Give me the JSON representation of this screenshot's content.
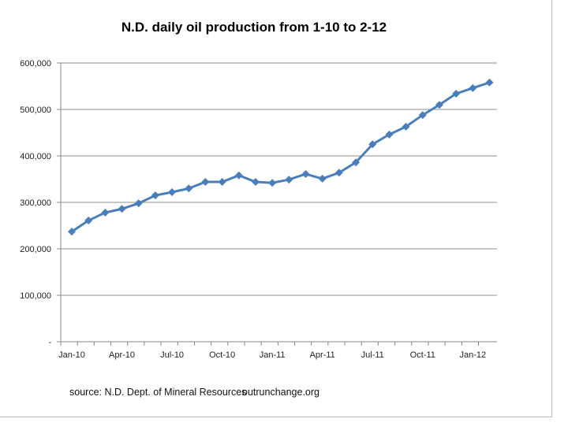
{
  "chart_data": {
    "type": "line",
    "title": "N.D. daily oil production from 1-10 to 2-12",
    "xlabel": "",
    "ylabel": "",
    "ylim": [
      0,
      600000
    ],
    "grid": true,
    "legend": "none",
    "x": [
      "Jan-10",
      "Feb-10",
      "Mar-10",
      "Apr-10",
      "May-10",
      "Jun-10",
      "Jul-10",
      "Aug-10",
      "Sep-10",
      "Oct-10",
      "Nov-10",
      "Dec-10",
      "Jan-11",
      "Feb-11",
      "Mar-11",
      "Apr-11",
      "May-11",
      "Jun-11",
      "Jul-11",
      "Aug-11",
      "Sep-11",
      "Oct-11",
      "Nov-11",
      "Dec-11",
      "Jan-12",
      "Feb-12"
    ],
    "x_tick_labels": [
      "Jan-10",
      "Apr-10",
      "Jul-10",
      "Oct-10",
      "Jan-11",
      "Apr-11",
      "Jul-11",
      "Oct-11",
      "Jan-12"
    ],
    "y_tick_labels": [
      "-",
      "100,000",
      "200,000",
      "300,000",
      "400,000",
      "500,000",
      "600,000"
    ],
    "series": [
      {
        "name": "Daily oil production",
        "color": "#4a7ebb",
        "values": [
          237000,
          261000,
          278000,
          286000,
          298000,
          315000,
          322000,
          330000,
          344000,
          344000,
          358000,
          344000,
          342000,
          349000,
          361000,
          351000,
          364000,
          386000,
          425000,
          446000,
          463000,
          488000,
          510000,
          534000,
          546000,
          558000
        ]
      }
    ],
    "annotations": [
      "source: N.D. Dept. of Mineral Resources",
      "outrunchange.org"
    ]
  }
}
